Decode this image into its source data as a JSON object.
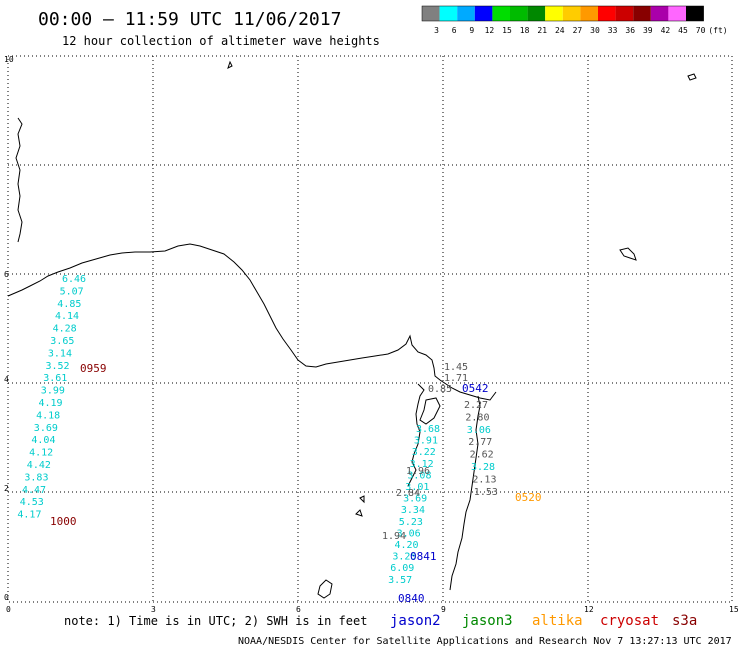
{
  "header": {
    "title": "00:00 – 11:59 UTC 11/06/2017",
    "subtitle": "12 hour collection of altimeter wave heights"
  },
  "legend": {
    "colors": [
      "#808080",
      "#00ffff",
      "#00aaff",
      "#0000ff",
      "#00dd00",
      "#00bb00",
      "#008800",
      "#ffff00",
      "#ffcc00",
      "#ff9900",
      "#ff0000",
      "#cc0000",
      "#880000",
      "#aa00aa",
      "#ff66ff",
      "#000000"
    ],
    "labels": [
      "3",
      "6",
      "9",
      "12",
      "15",
      "18",
      "21",
      "24",
      "27",
      "30",
      "33",
      "36",
      "39",
      "42",
      "45",
      "70"
    ],
    "unit": "(ft)"
  },
  "axes": {
    "x_ticks": [
      "0",
      "3",
      "6",
      "9",
      "12",
      "15"
    ],
    "y_ticks": [
      "0",
      "2",
      "4",
      "6",
      "10"
    ]
  },
  "tracks": {
    "jason3_left": {
      "color": "#00cccc",
      "values": [
        "6.46",
        "5.07",
        "4.85",
        "4.14",
        "4.28",
        "3.65",
        "3.14",
        "3.52",
        "3.61",
        "3.99",
        "4.19",
        "4.18",
        "3.69",
        "4.04",
        "4.12",
        "4.42",
        "3.83",
        "4.47",
        "4.53",
        "4.17"
      ]
    },
    "jason3_mid": {
      "color": "#00cccc",
      "values": [
        "3.68",
        "3.91",
        "3.22",
        "3.12",
        "3.08",
        "3.01",
        "3.69",
        "3.34",
        "5.23",
        "3.06",
        "4.20",
        "3.25",
        "6.09",
        "3.57"
      ]
    },
    "gray_mid": {
      "color": "#555555",
      "values": [
        "1.96",
        "2.84",
        "1.94"
      ]
    },
    "gray_top": {
      "color": "#555555",
      "values": [
        "1.45",
        "1.71",
        "0.85"
      ]
    },
    "altika_track": {
      "values": [
        "2.27",
        "2.80",
        "3.06",
        "2.77",
        "2.62",
        "3.28",
        "2.13",
        "1.53"
      ]
    }
  },
  "pass_labels": {
    "cryosat_0959": "0959",
    "cryosat_1000": "1000",
    "jason2_0542": "0542",
    "jason2_0841": "0841",
    "jason2_0840": "0840",
    "altika_0520": "0520"
  },
  "footer": {
    "note": "note: 1) Time is in UTC; 2) SWH is in feet",
    "satellites": [
      {
        "name": "jason2",
        "color": "#0000cc"
      },
      {
        "name": "jason3",
        "color": "#008800"
      },
      {
        "name": "altika",
        "color": "#ff9900"
      },
      {
        "name": "cryosat",
        "color": "#cc0000"
      },
      {
        "name": "s3a",
        "color": "#880000"
      }
    ],
    "credit": "NOAA/NESDIS Center for Satellite Applications and Research   Nov  7 13:27:13 UTC 2017"
  },
  "colors": {
    "grid": "#000000",
    "cryosat_label": "#880000",
    "jason2_label": "#0000cc",
    "altika_label": "#ff9900",
    "coast": "#000000"
  }
}
